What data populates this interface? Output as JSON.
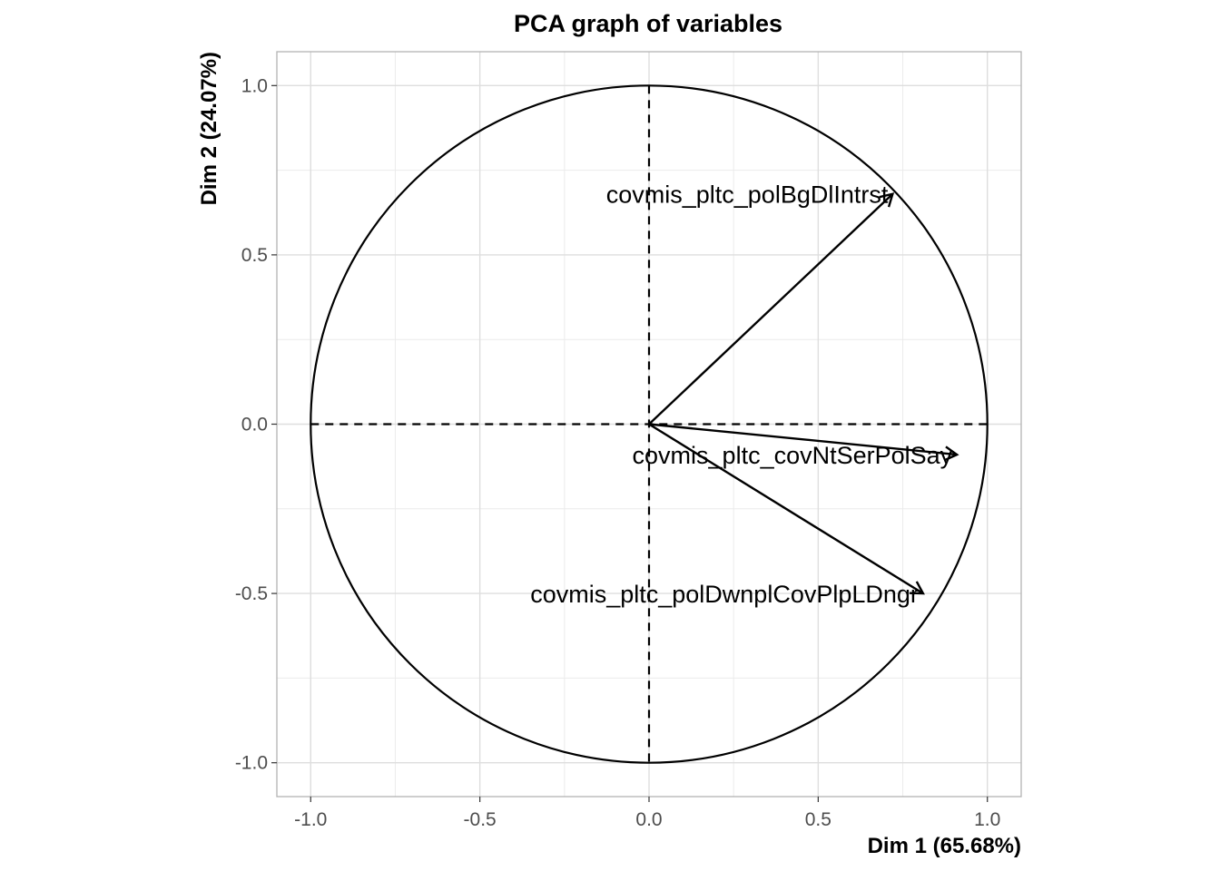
{
  "chart_data": {
    "type": "scatter",
    "subtype": "pca-correlation-circle",
    "title": "PCA graph of variables",
    "xlabel": "Dim 1 (65.68%)",
    "ylabel": "Dim 2 (24.07%)",
    "xlim": [
      -1.1,
      1.1
    ],
    "ylim": [
      -1.1,
      1.1
    ],
    "x_ticks": [
      -1.0,
      -0.5,
      0.0,
      0.5,
      1.0
    ],
    "y_ticks": [
      -1.0,
      -0.5,
      0.0,
      0.5,
      1.0
    ],
    "x_tick_labels": [
      "-1.0",
      "-0.5",
      "0.0",
      "0.5",
      "1.0"
    ],
    "y_tick_labels": [
      "-1.0",
      "-0.5",
      "0.0",
      "0.5",
      "1.0"
    ],
    "grid": true,
    "unit_circle": true,
    "variables": [
      {
        "name": "covmis_pltc_polBgDlIntrst",
        "x": 0.72,
        "y": 0.68
      },
      {
        "name": "covmis_pltc_covNtSerPolSay",
        "x": 0.91,
        "y": -0.09
      },
      {
        "name": "covmis_pltc_polDwnplCovPlpLDngr",
        "x": 0.81,
        "y": -0.5
      }
    ]
  }
}
